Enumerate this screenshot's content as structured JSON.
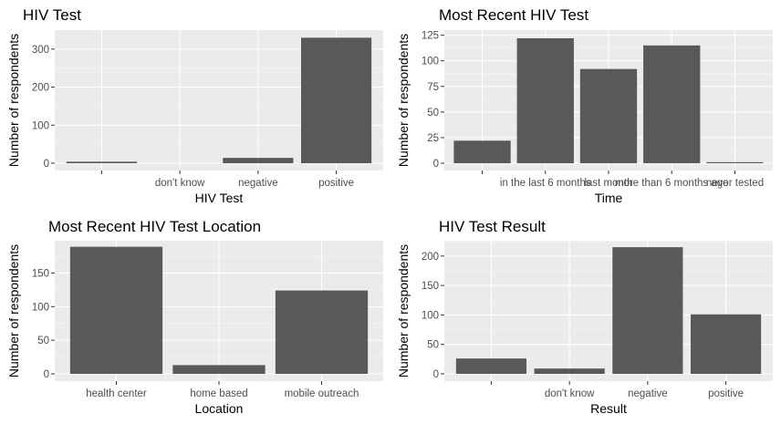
{
  "chart_data": [
    {
      "type": "bar",
      "title": "HIV Test",
      "xlabel": "HIV Test",
      "ylabel": "Number of respondents",
      "categories": [
        "",
        "don't know",
        "negative",
        "positive"
      ],
      "values": [
        4,
        0,
        14,
        330
      ],
      "ylim": [
        0,
        350
      ],
      "yticks": [
        0,
        100,
        200,
        300
      ]
    },
    {
      "type": "bar",
      "title": "Most Recent HIV Test",
      "xlabel": "Time",
      "ylabel": "Number of respondents",
      "categories": [
        "",
        "in the last 6 months",
        "last month",
        "more than 6 months ago",
        "never tested"
      ],
      "values": [
        22,
        122,
        92,
        115,
        1
      ],
      "ylim": [
        0,
        130
      ],
      "yticks": [
        0,
        25,
        50,
        75,
        100,
        125
      ]
    },
    {
      "type": "bar",
      "title": "Most Recent HIV Test Location",
      "xlabel": "Location",
      "ylabel": "Number of respondents",
      "categories": [
        "health center",
        "home based",
        "mobile outreach"
      ],
      "values": [
        189,
        13,
        124
      ],
      "ylim": [
        0,
        198
      ],
      "yticks": [
        0,
        50,
        100,
        150
      ]
    },
    {
      "type": "bar",
      "title": "HIV Test Result",
      "xlabel": "Result",
      "ylabel": "Number of respondents",
      "categories": [
        "",
        "don't know",
        "negative",
        "positive"
      ],
      "values": [
        26,
        9,
        215,
        101
      ],
      "ylim": [
        0,
        226
      ],
      "yticks": [
        0,
        50,
        100,
        150,
        200
      ]
    }
  ]
}
